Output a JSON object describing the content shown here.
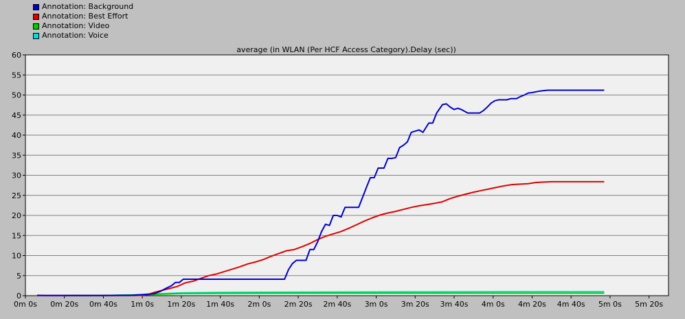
{
  "legend": {
    "items": [
      {
        "label": "Annotation: Background",
        "color": "#0000cc"
      },
      {
        "label": "Annotation: Best Effort",
        "color": "#dd0000"
      },
      {
        "label": "Annotation: Video",
        "color": "#00cc00"
      },
      {
        "label": "Annotation: Voice",
        "color": "#00dddd"
      }
    ]
  },
  "chart_data": {
    "type": "line",
    "title": "average (in WLAN (Per HCF Access Category).Delay (sec))",
    "xlabel": "",
    "ylabel": "",
    "xlim": [
      0,
      330
    ],
    "ylim": [
      0,
      60
    ],
    "x_ticks": [
      {
        "value": 0,
        "label": "0m 0s"
      },
      {
        "value": 20,
        "label": "0m 20s"
      },
      {
        "value": 40,
        "label": "0m 40s"
      },
      {
        "value": 60,
        "label": "1m 0s"
      },
      {
        "value": 80,
        "label": "1m 20s"
      },
      {
        "value": 100,
        "label": "1m 40s"
      },
      {
        "value": 120,
        "label": "2m 0s"
      },
      {
        "value": 140,
        "label": "2m 20s"
      },
      {
        "value": 160,
        "label": "2m 40s"
      },
      {
        "value": 180,
        "label": "3m 0s"
      },
      {
        "value": 200,
        "label": "3m 20s"
      },
      {
        "value": 220,
        "label": "3m 40s"
      },
      {
        "value": 240,
        "label": "4m 0s"
      },
      {
        "value": 260,
        "label": "4m 20s"
      },
      {
        "value": 280,
        "label": "4m 40s"
      },
      {
        "value": 300,
        "label": "5m 0s"
      },
      {
        "value": 320,
        "label": "5m 20s"
      }
    ],
    "y_ticks": [
      0,
      5,
      10,
      15,
      20,
      25,
      30,
      35,
      40,
      45,
      50,
      55,
      60
    ],
    "grid": true,
    "legend_position": "top-left",
    "series": [
      {
        "name": "Annotation: Background",
        "color": "#0000cc",
        "x": [
          6,
          20,
          40,
          55,
          58,
          61,
          63,
          66,
          69,
          72,
          75,
          77,
          79,
          81,
          83,
          85,
          87,
          89,
          90,
          92,
          94,
          96,
          98,
          100,
          105,
          110,
          115,
          120,
          125,
          130,
          132,
          133,
          135,
          137,
          139,
          141,
          144,
          146,
          148,
          150,
          152,
          154,
          156,
          158,
          160,
          162,
          164,
          166,
          168,
          171,
          173,
          175,
          177,
          179,
          181,
          184,
          186,
          188,
          190,
          192,
          194,
          196,
          198,
          200,
          202,
          204,
          207,
          209,
          211,
          214,
          216,
          218,
          220,
          222,
          224,
          227,
          229,
          231,
          233,
          235,
          237,
          239,
          241,
          243,
          245,
          247,
          249,
          252,
          254,
          256,
          258,
          260,
          262,
          264,
          266,
          268,
          270,
          272,
          274,
          276,
          278,
          280,
          282,
          284,
          287,
          289,
          291,
          293,
          295,
          297
        ],
        "y": [
          0.05,
          0.05,
          0.05,
          0.1,
          0.2,
          0.3,
          0.4,
          0.5,
          1.0,
          1.8,
          2.5,
          3.3,
          3.3,
          4.1,
          4.1,
          4.1,
          4.1,
          4.1,
          4.1,
          4.1,
          4.1,
          4.1,
          4.1,
          4.1,
          4.1,
          4.1,
          4.1,
          4.1,
          4.1,
          4.1,
          4.1,
          4.1,
          6.5,
          8.0,
          8.8,
          8.8,
          8.8,
          11.5,
          11.5,
          13.5,
          16.0,
          17.8,
          17.5,
          20.0,
          20.0,
          19.6,
          22.0,
          22.0,
          22.0,
          22.0,
          24.5,
          27.0,
          29.4,
          29.4,
          31.8,
          31.8,
          34.2,
          34.2,
          34.4,
          36.9,
          37.5,
          38.3,
          40.7,
          41.0,
          41.3,
          40.7,
          43.0,
          43.0,
          45.5,
          47.6,
          47.8,
          47.0,
          46.4,
          46.7,
          46.3,
          45.5,
          45.5,
          45.5,
          45.5,
          46.1,
          47.0,
          48.0,
          48.6,
          48.8,
          48.8,
          48.8,
          49.1,
          49.1,
          49.6,
          50.0,
          50.5,
          50.6,
          50.8,
          51.0,
          51.1,
          51.2,
          51.2,
          51.2,
          51.2,
          51.2,
          51.2,
          51.2,
          51.2,
          51.2,
          51.2,
          51.2,
          51.2,
          51.2,
          51.2,
          51.2
        ]
      },
      {
        "name": "Annotation: Best Effort",
        "color": "#dd0000",
        "x": [
          6,
          10,
          20,
          40,
          55,
          60,
          63,
          66,
          70,
          74,
          78,
          82,
          86,
          90,
          94,
          98,
          102,
          106,
          110,
          114,
          118,
          122,
          126,
          130,
          134,
          138,
          142,
          146,
          150,
          154,
          158,
          162,
          166,
          170,
          174,
          178,
          182,
          186,
          190,
          194,
          198,
          202,
          206,
          210,
          214,
          218,
          222,
          226,
          230,
          234,
          238,
          242,
          246,
          250,
          254,
          258,
          262,
          266,
          270,
          274,
          278,
          282,
          286,
          290,
          294,
          297
        ],
        "y": [
          0.1,
          0.05,
          0.05,
          0.05,
          0.05,
          0.1,
          0.3,
          0.8,
          1.3,
          1.8,
          2.3,
          3.2,
          3.6,
          4.3,
          5.0,
          5.4,
          6.0,
          6.6,
          7.2,
          7.9,
          8.4,
          9.0,
          9.8,
          10.5,
          11.2,
          11.5,
          12.2,
          13.0,
          14.0,
          14.8,
          15.4,
          16.0,
          16.8,
          17.7,
          18.6,
          19.4,
          20.1,
          20.6,
          21.0,
          21.5,
          22.0,
          22.4,
          22.7,
          23.0,
          23.4,
          24.2,
          24.8,
          25.3,
          25.8,
          26.2,
          26.6,
          27.0,
          27.4,
          27.7,
          27.8,
          27.9,
          28.2,
          28.3,
          28.4,
          28.4,
          28.4,
          28.4,
          28.4,
          28.4,
          28.4,
          28.4
        ]
      },
      {
        "name": "Annotation: Video",
        "color": "#00cc00",
        "x": [
          20,
          40,
          60,
          70,
          80,
          100,
          120,
          150,
          200,
          250,
          297
        ],
        "y": [
          0.02,
          0.05,
          0.2,
          0.4,
          0.55,
          0.6,
          0.62,
          0.63,
          0.64,
          0.65,
          0.65
        ]
      },
      {
        "name": "Annotation: Voice",
        "color": "#00dddd",
        "x": [
          20,
          40,
          60,
          70,
          80,
          100,
          120,
          150,
          200,
          250,
          297
        ],
        "y": [
          0.02,
          0.05,
          0.25,
          0.5,
          0.7,
          0.8,
          0.85,
          0.9,
          0.95,
          1.0,
          1.0
        ]
      }
    ]
  }
}
